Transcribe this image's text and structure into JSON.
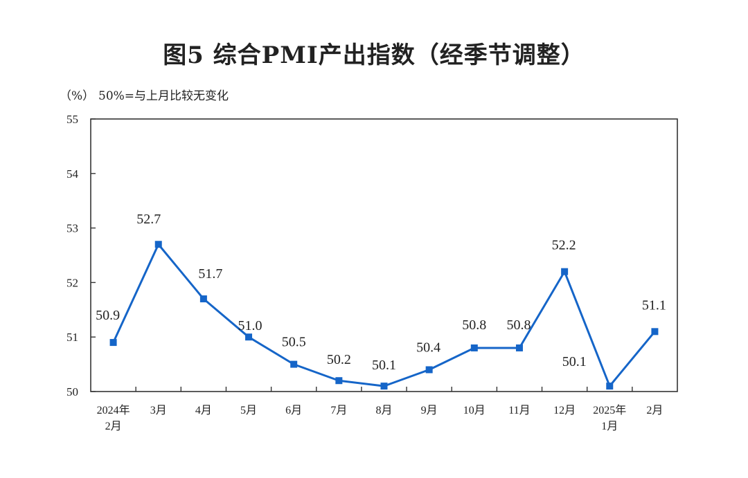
{
  "chart_data": {
    "type": "line",
    "title": "图5  综合PMI产出指数（经季节调整）",
    "ylabel": "（%）",
    "annotation": "50%=与上月比较无变化",
    "ylim": [
      50,
      55
    ],
    "yticks": [
      "50",
      "51",
      "52",
      "53",
      "54",
      "55"
    ],
    "categories": [
      [
        "2024年",
        "2月"
      ],
      [
        "3月"
      ],
      [
        "4月"
      ],
      [
        "5月"
      ],
      [
        "6月"
      ],
      [
        "7月"
      ],
      [
        "8月"
      ],
      [
        "9月"
      ],
      [
        "10月"
      ],
      [
        "11月"
      ],
      [
        "12月"
      ],
      [
        "2025年",
        "1月"
      ],
      [
        "2月"
      ]
    ],
    "series": [
      {
        "name": "综合PMI产出指数",
        "color": "#1565C8",
        "values": [
          50.9,
          52.7,
          51.7,
          51.0,
          50.5,
          50.2,
          50.1,
          50.4,
          50.8,
          50.8,
          52.2,
          50.1,
          51.1
        ],
        "labels": [
          "50.9",
          "52.7",
          "51.7",
          "51.0",
          "50.5",
          "50.2",
          "50.1",
          "50.4",
          "50.8",
          "50.8",
          "52.2",
          "50.1",
          "51.1"
        ]
      }
    ]
  }
}
